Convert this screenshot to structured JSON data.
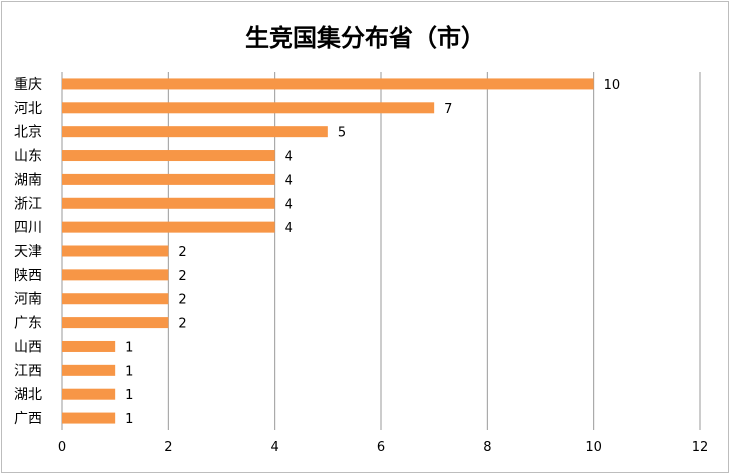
{
  "chart_data": {
    "type": "bar",
    "orientation": "horizontal",
    "title": "生竞国集分布省（市）",
    "categories": [
      "重庆",
      "河北",
      "北京",
      "山东",
      "湖南",
      "浙江",
      "四川",
      "天津",
      "陕西",
      "河南",
      "广东",
      "山西",
      "江西",
      "湖北",
      "广西"
    ],
    "values": [
      10,
      7,
      5,
      4,
      4,
      4,
      4,
      2,
      2,
      2,
      2,
      1,
      1,
      1,
      1
    ],
    "xlim": [
      0,
      12
    ],
    "xticks": [
      0,
      2,
      4,
      6,
      8,
      10,
      12
    ],
    "xlabel": "",
    "ylabel": "",
    "grid": "vertical",
    "legend": "none",
    "data_labels": true,
    "bar_color": "#F79646",
    "grid_color": "#9a9a9a"
  }
}
